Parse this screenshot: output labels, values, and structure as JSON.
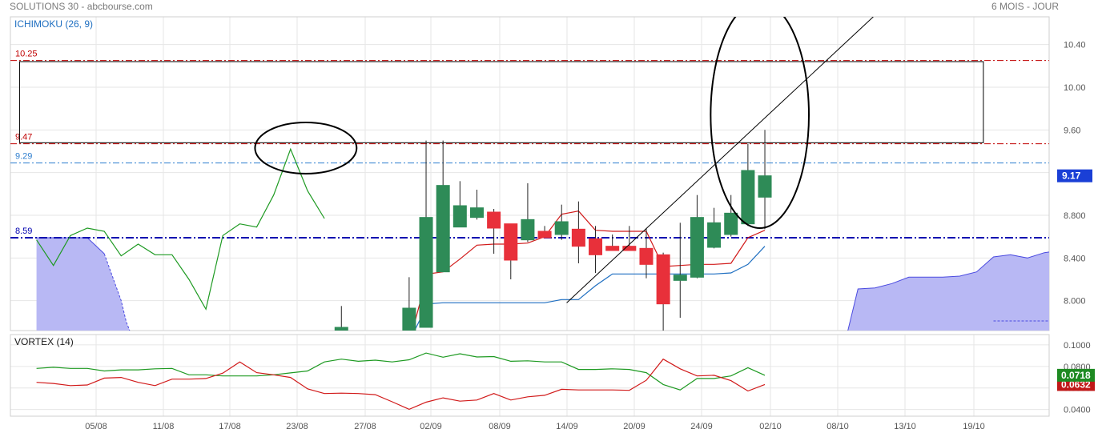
{
  "header": {
    "title": "SOLUTIONS 30 - abcbourse.com",
    "period": "6 MOIS - JOUR"
  },
  "colors": {
    "up": "#2e8b57",
    "down": "#e8303a",
    "kijun": "#1f6fc1",
    "tenkan": "#d11a1a",
    "chikou": "#1e9a22",
    "cloud": "#b8b8f4",
    "cloud_edge": "#4a4ae0",
    "level_red": "#c00000",
    "level_blue_dark": "#0000b0",
    "level_blue": "#2f7fcf",
    "grid": "#e6e6e6"
  },
  "chart_data": [
    {
      "type": "candlestick",
      "title": "ICHIMOKU (26, 9)",
      "ylim": [
        7.72,
        10.66
      ],
      "y_ticks": [
        "10.40",
        "10.00",
        "9.60",
        "9.20",
        "8.800",
        "8.400",
        "8.000"
      ],
      "x_ticks": [
        "05/08",
        "11/08",
        "17/08",
        "23/08",
        "27/08",
        "02/09",
        "08/09",
        "14/09",
        "20/09",
        "24/09",
        "02/10",
        "08/10",
        "13/10",
        "19/10"
      ],
      "last_price_label": "9.17",
      "levels": [
        {
          "label": "10.25",
          "value": 10.25,
          "color": "#c00000",
          "style": "dashdot"
        },
        {
          "label": "9.47",
          "value": 9.47,
          "color": "#c00000",
          "style": "dashdot"
        },
        {
          "label": "9.29",
          "value": 9.29,
          "color": "#2f7fcf",
          "style": "dashdot"
        },
        {
          "label": "8.59",
          "value": 8.59,
          "color": "#0000b0",
          "style": "dashdot-bold"
        }
      ],
      "candles": [
        {
          "x": 18.5,
          "open": 7.68,
          "high": 7.95,
          "low": 7.68,
          "close": 7.75
        },
        {
          "x": 22.5,
          "open": 7.68,
          "high": 8.22,
          "low": 7.68,
          "close": 7.93
        },
        {
          "x": 23.5,
          "open": 7.75,
          "high": 9.5,
          "low": 7.75,
          "close": 8.78
        },
        {
          "x": 24.5,
          "open": 8.27,
          "high": 9.5,
          "low": 8.27,
          "close": 9.08
        },
        {
          "x": 25.5,
          "open": 8.69,
          "high": 9.12,
          "low": 8.69,
          "close": 8.89
        },
        {
          "x": 26.5,
          "open": 8.78,
          "high": 9.04,
          "low": 8.76,
          "close": 8.87
        },
        {
          "x": 27.5,
          "open": 8.83,
          "high": 8.86,
          "low": 8.44,
          "close": 8.68
        },
        {
          "x": 28.5,
          "open": 8.72,
          "high": 8.72,
          "low": 8.2,
          "close": 8.38
        },
        {
          "x": 29.5,
          "open": 8.57,
          "high": 9.1,
          "low": 8.55,
          "close": 8.76
        },
        {
          "x": 30.5,
          "open": 8.65,
          "high": 8.7,
          "low": 8.59,
          "close": 8.59
        },
        {
          "x": 31.5,
          "open": 8.62,
          "high": 8.9,
          "low": 8.57,
          "close": 8.74
        },
        {
          "x": 32.5,
          "open": 8.67,
          "high": 8.93,
          "low": 8.35,
          "close": 8.51
        },
        {
          "x": 33.5,
          "open": 8.58,
          "high": 8.7,
          "low": 8.26,
          "close": 8.43
        },
        {
          "x": 34.5,
          "open": 8.51,
          "high": 8.62,
          "low": 8.47,
          "close": 8.47
        },
        {
          "x": 35.5,
          "open": 8.51,
          "high": 8.7,
          "low": 8.47,
          "close": 8.47
        },
        {
          "x": 36.5,
          "open": 8.49,
          "high": 8.68,
          "low": 8.21,
          "close": 8.34
        },
        {
          "x": 37.5,
          "open": 8.43,
          "high": 8.45,
          "low": 7.71,
          "close": 7.97
        },
        {
          "x": 38.5,
          "open": 8.19,
          "high": 8.73,
          "low": 7.84,
          "close": 8.24
        },
        {
          "x": 39.5,
          "open": 8.22,
          "high": 8.99,
          "low": 8.21,
          "close": 8.78
        },
        {
          "x": 40.5,
          "open": 8.5,
          "high": 8.87,
          "low": 8.49,
          "close": 8.73
        },
        {
          "x": 41.5,
          "open": 8.62,
          "high": 8.99,
          "low": 8.6,
          "close": 8.82
        },
        {
          "x": 42.5,
          "open": 8.72,
          "high": 9.47,
          "low": 8.7,
          "close": 9.22
        },
        {
          "x": 43.5,
          "open": 8.97,
          "high": 9.6,
          "low": 8.67,
          "close": 9.17
        }
      ],
      "kijun": {
        "x": [
          22.7,
          23.6,
          24.5,
          25.5,
          26.5,
          27.5,
          28.5,
          29.5,
          30.5,
          31.5,
          32.5,
          33.5,
          34.5,
          35.5,
          36.5,
          37.5,
          38.5,
          39.5,
          40.5,
          41.5,
          42.5,
          43.5
        ],
        "y": [
          7.68,
          7.97,
          7.98,
          7.98,
          7.98,
          7.98,
          7.98,
          7.98,
          7.98,
          8.01,
          8.01,
          8.14,
          8.25,
          8.25,
          8.25,
          8.25,
          8.25,
          8.25,
          8.25,
          8.26,
          8.34,
          8.51
        ]
      },
      "tenkan": {
        "x": [
          22.7,
          23.6,
          24.5,
          25.5,
          26.5,
          27.5,
          28.5,
          29.5,
          30.5,
          31.5,
          32.5,
          33.5,
          34.5,
          35.5,
          36.5,
          37.5,
          38.5,
          39.5,
          40.5,
          41.5,
          42.5,
          43.5
        ],
        "y": [
          7.72,
          8.25,
          8.27,
          8.39,
          8.52,
          8.53,
          8.53,
          8.54,
          8.6,
          8.81,
          8.84,
          8.66,
          8.65,
          8.65,
          8.65,
          8.32,
          8.33,
          8.34,
          8.34,
          8.35,
          8.59,
          8.66
        ]
      },
      "chikou": {
        "x": [
          0.5,
          1.5,
          2.5,
          3.5,
          4.5,
          5.5,
          6.5,
          7.5,
          8.5,
          9.5,
          10.5,
          11.5,
          12.5,
          13.5,
          14.5,
          15.5,
          16.5,
          17.5
        ],
        "y": [
          8.57,
          8.33,
          8.61,
          8.68,
          8.65,
          8.42,
          8.53,
          8.43,
          8.43,
          8.2,
          7.92,
          8.61,
          8.72,
          8.69,
          8.99,
          9.42,
          9.03,
          8.77
        ]
      },
      "cloud": {
        "x": [
          0.5,
          1.5,
          2.5,
          3.5,
          4.5,
          5.5,
          5.8,
          6.0
        ],
        "top": [
          8.59,
          8.59,
          8.59,
          8.59,
          8.44,
          8.0,
          7.8,
          7.72
        ]
      },
      "cloud_right": {
        "x": [
          48.4,
          49.0,
          50.0,
          51.0,
          52.0,
          53.0,
          54.0,
          55.0,
          56.0,
          57.0,
          58.0,
          59.0,
          60.0,
          61.0
        ],
        "top": [
          7.72,
          8.11,
          8.12,
          8.16,
          8.22,
          8.22,
          8.22,
          8.23,
          8.27,
          8.41,
          8.43,
          8.4,
          8.45,
          8.47
        ],
        "bottom_x": [
          57.0,
          61.0
        ],
        "bottom": [
          7.81,
          7.81
        ]
      },
      "trendline": {
        "x": [
          31.8,
          49.9
        ],
        "y": [
          7.98,
          10.66
        ]
      },
      "box": {
        "x": [
          -0.5,
          56.4
        ],
        "y": [
          9.48,
          10.24
        ]
      },
      "ellipses": [
        {
          "cx": 16.4,
          "cy": 9.43,
          "rx": 3.0,
          "ry": 0.24
        },
        {
          "cx": 43.2,
          "cy": 9.74,
          "rx": 2.9,
          "ry": 1.06
        }
      ]
    },
    {
      "type": "line",
      "title": "VORTEX (14)",
      "ylim": [
        0.0338,
        0.1096
      ],
      "y_ticks": [
        "0.1000",
        "0.0800",
        "0.0600",
        "0.0400"
      ],
      "plus_label": "0.0718",
      "minus_label": "0.0632",
      "vi_plus": {
        "x": [
          0.5,
          1.5,
          2.5,
          3.5,
          4.5,
          5.5,
          6.5,
          7.5,
          8.5,
          9.5,
          10.5,
          11.5,
          12.5,
          13.5,
          14.5,
          15.5,
          16.5,
          17.5,
          18.5,
          19.5,
          20.5,
          21.5,
          22.5,
          23.5,
          24.5,
          25.5,
          26.5,
          27.5,
          28.5,
          29.5,
          30.5,
          31.5,
          32.5,
          33.5,
          34.5,
          35.5,
          36.5,
          37.5,
          38.5,
          39.5,
          40.5,
          41.5,
          42.5,
          43.5
        ],
        "y": [
          0.0782,
          0.0792,
          0.0782,
          0.0782,
          0.0758,
          0.0768,
          0.0768,
          0.0778,
          0.0782,
          0.0722,
          0.0722,
          0.0712,
          0.0712,
          0.0712,
          0.0722,
          0.074,
          0.0758,
          0.0842,
          0.0868,
          0.0848,
          0.0858,
          0.0842,
          0.0862,
          0.0924,
          0.0886,
          0.0918,
          0.0888,
          0.0892,
          0.0848,
          0.0852,
          0.0842,
          0.0842,
          0.0772,
          0.0772,
          0.0778,
          0.0772,
          0.0742,
          0.0632,
          0.0582,
          0.0688,
          0.0688,
          0.0712,
          0.0788,
          0.0718
        ]
      },
      "vi_minus": {
        "x": [
          0.5,
          1.5,
          2.5,
          3.5,
          4.5,
          5.5,
          6.5,
          7.5,
          8.5,
          9.5,
          10.5,
          11.5,
          12.5,
          13.5,
          14.5,
          15.5,
          16.5,
          17.5,
          18.5,
          19.5,
          20.5,
          21.5,
          22.5,
          23.5,
          24.5,
          25.5,
          26.5,
          27.5,
          28.5,
          29.5,
          30.5,
          31.5,
          32.5,
          33.5,
          34.5,
          35.5,
          36.5,
          37.5,
          38.5,
          39.5,
          40.5,
          41.5,
          42.5,
          43.5
        ],
        "y": [
          0.0652,
          0.0642,
          0.0622,
          0.0628,
          0.0692,
          0.0698,
          0.0652,
          0.0622,
          0.0682,
          0.0682,
          0.0688,
          0.0738,
          0.0842,
          0.0742,
          0.0722,
          0.0698,
          0.0592,
          0.0548,
          0.0552,
          0.0548,
          0.0538,
          0.0472,
          0.0402,
          0.0468,
          0.0508,
          0.0478,
          0.0488,
          0.0548,
          0.0488,
          0.0518,
          0.0532,
          0.0588,
          0.0582,
          0.0582,
          0.0582,
          0.0578,
          0.0672,
          0.0868,
          0.0778,
          0.0712,
          0.0718,
          0.0668,
          0.0572,
          0.0632
        ]
      }
    }
  ]
}
